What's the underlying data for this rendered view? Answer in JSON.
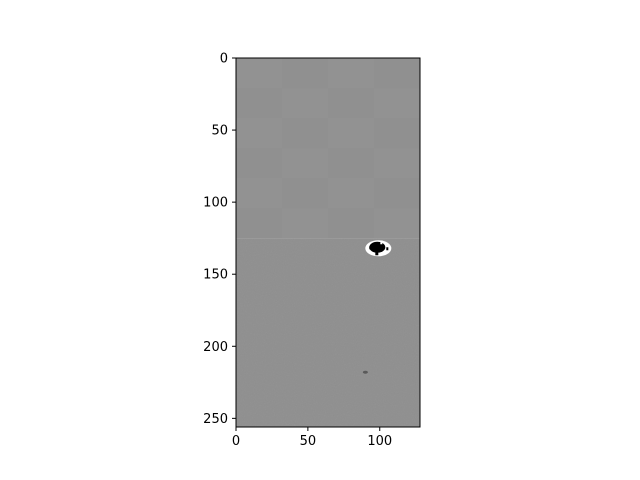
{
  "chart_data": {
    "type": "heatmap",
    "title": "",
    "xlabel": "",
    "ylabel": "",
    "xlim": [
      0,
      128
    ],
    "ylim": [
      256,
      0
    ],
    "x_ticks": [
      "0",
      "50",
      "100"
    ],
    "y_ticks": [
      "0",
      "50",
      "100",
      "150",
      "200",
      "250"
    ],
    "x_tick_values": [
      0,
      50,
      100
    ],
    "y_tick_values": [
      0,
      50,
      100,
      150,
      200,
      250
    ],
    "grid": false,
    "colormap": "gray",
    "upper_region": {
      "y_range": [
        0,
        125
      ],
      "color": "#919191"
    },
    "lower_region": {
      "y_range": [
        125,
        256
      ],
      "color": "#8d8d8d"
    },
    "blob": {
      "x": 99,
      "y": 132
    },
    "speck": {
      "x": 90,
      "y": 218
    }
  }
}
